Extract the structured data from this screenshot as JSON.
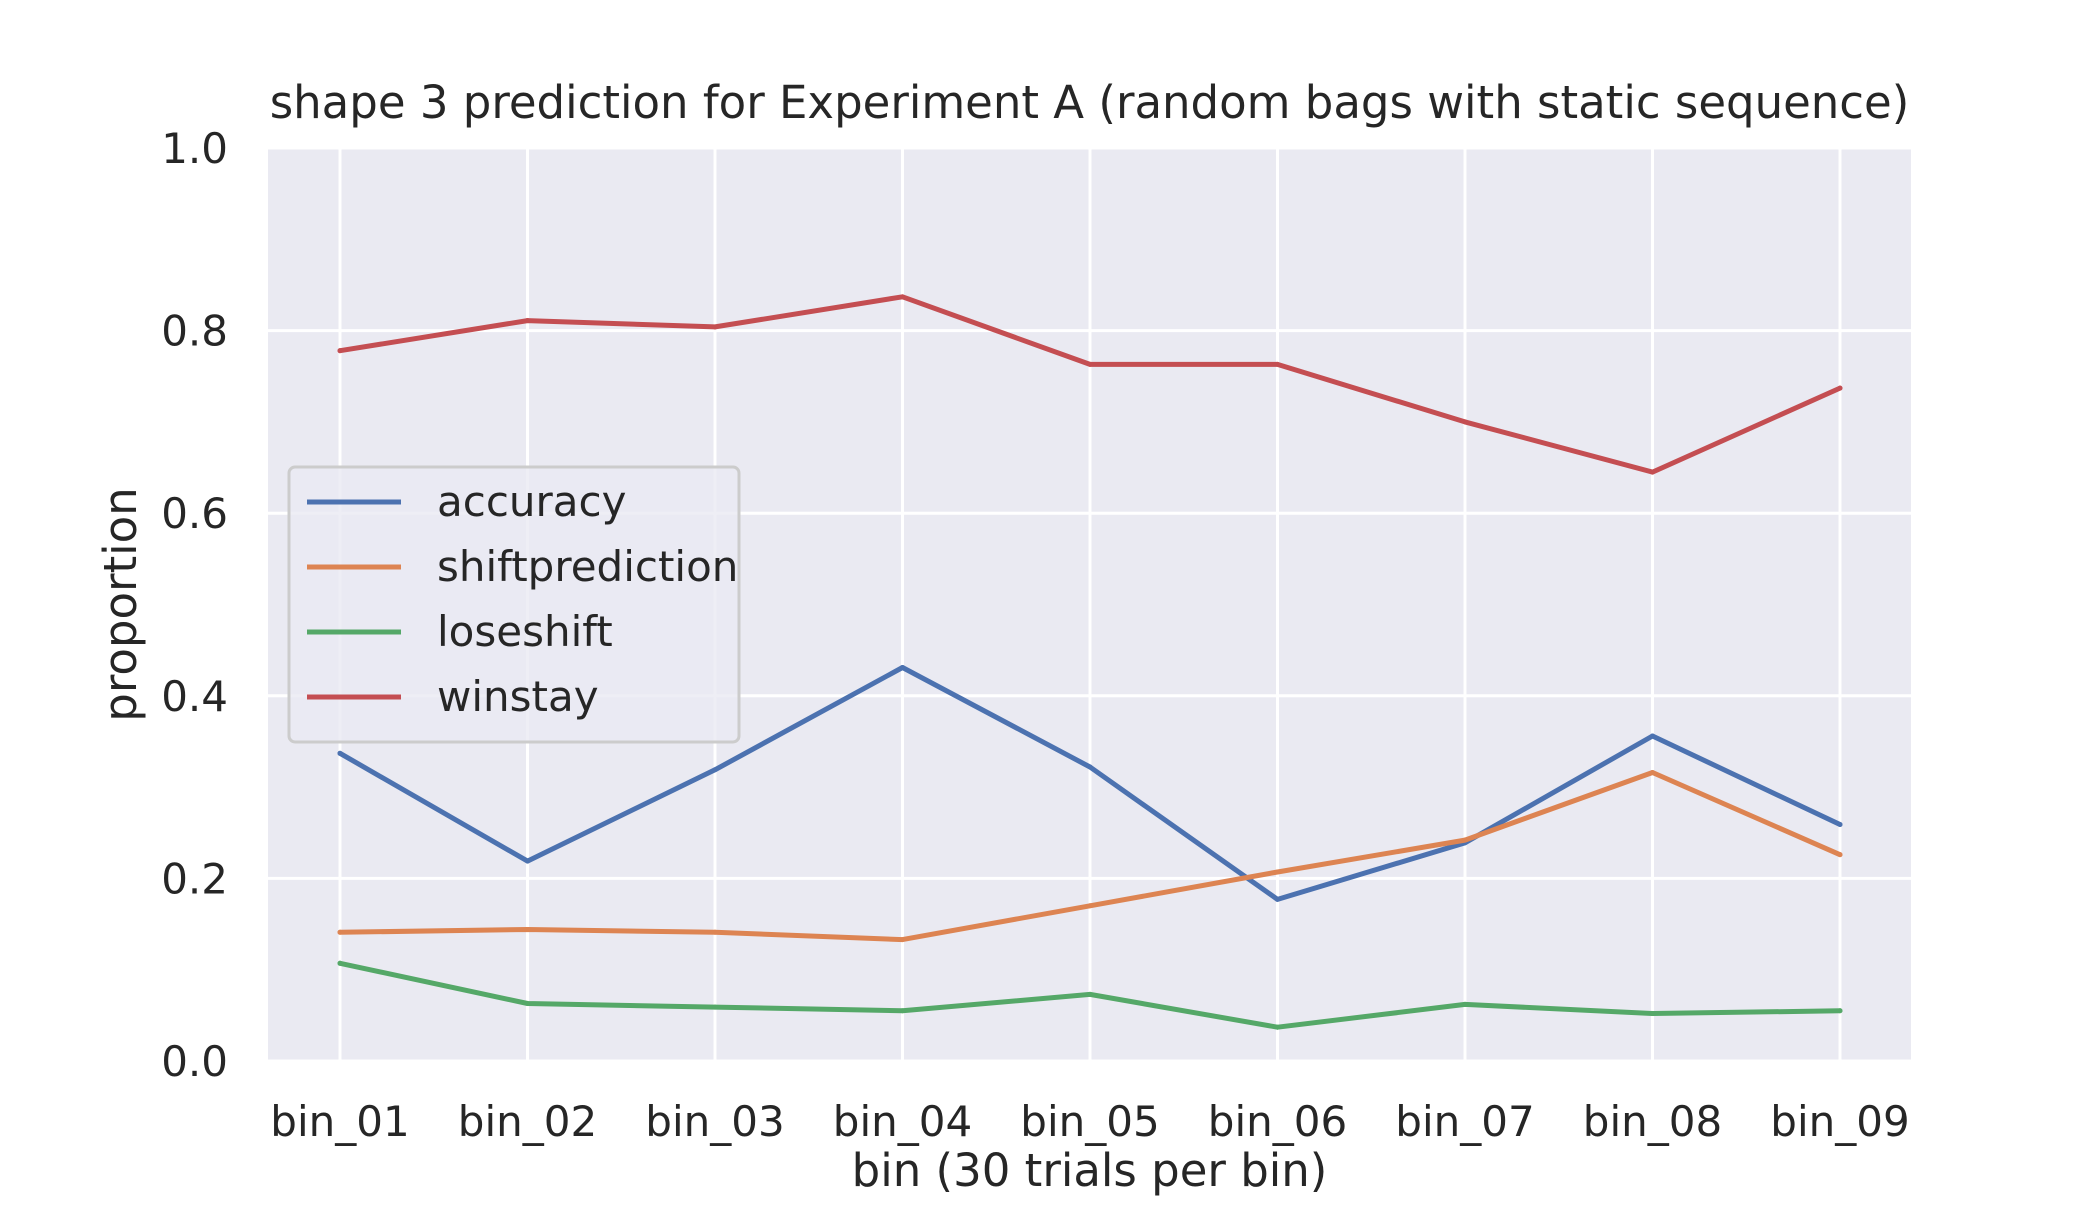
{
  "chart_data": {
    "type": "line",
    "title": "shape 3 prediction for Experiment A (random bags with static sequence)",
    "xlabel": "bin (30 trials per bin)",
    "ylabel": "proportion",
    "categories": [
      "bin_01",
      "bin_02",
      "bin_03",
      "bin_04",
      "bin_05",
      "bin_06",
      "bin_07",
      "bin_08",
      "bin_09"
    ],
    "ylim": [
      0.0,
      1.0
    ],
    "yticks": [
      "0.0",
      "0.2",
      "0.4",
      "0.6",
      "0.8",
      "1.0"
    ],
    "grid": true,
    "legend_position": "center-left",
    "colors": {
      "plot_background": "#eaeaf2",
      "grid": "#ffffff",
      "legend_border": "#cccccc"
    },
    "series": [
      {
        "name": "accuracy",
        "color": "#4c72b0",
        "values": [
          0.337,
          0.219,
          0.319,
          0.431,
          0.322,
          0.177,
          0.239,
          0.356,
          0.259
        ]
      },
      {
        "name": "shiftprediction",
        "color": "#dd8452",
        "values": [
          0.141,
          0.144,
          0.141,
          0.133,
          0.17,
          0.207,
          0.242,
          0.316,
          0.226
        ]
      },
      {
        "name": "loseshift",
        "color": "#55a868",
        "values": [
          0.107,
          0.063,
          0.059,
          0.055,
          0.073,
          0.037,
          0.062,
          0.052,
          0.055
        ]
      },
      {
        "name": "winstay",
        "color": "#c44e52",
        "values": [
          0.778,
          0.811,
          0.804,
          0.837,
          0.763,
          0.763,
          0.7,
          0.645,
          0.737
        ]
      }
    ]
  }
}
